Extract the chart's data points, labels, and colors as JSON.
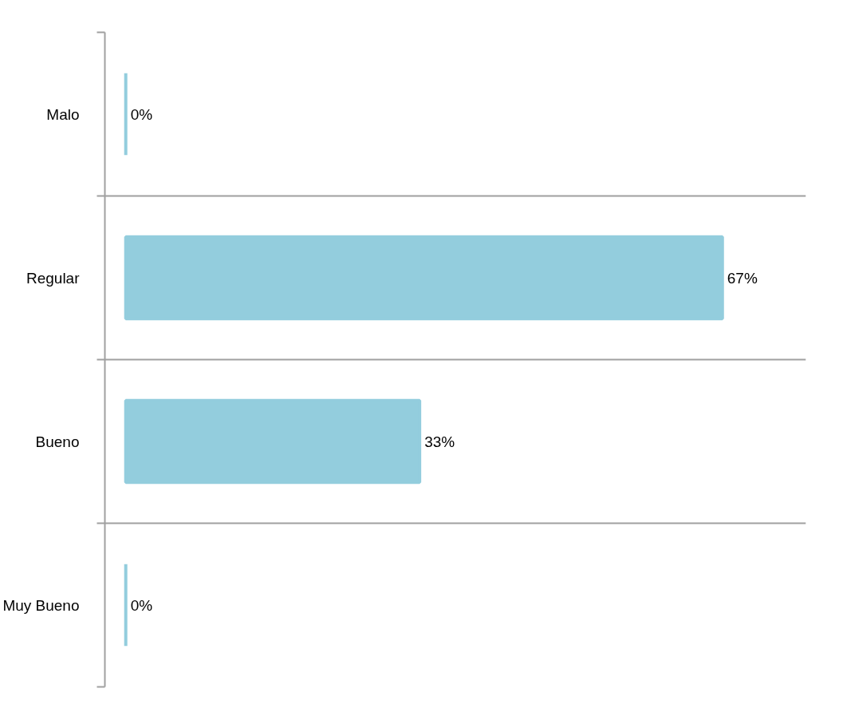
{
  "chart_data": {
    "type": "bar",
    "orientation": "horizontal",
    "categories": [
      "Malo",
      "Regular",
      "Bueno",
      "Muy Bueno"
    ],
    "values": [
      0,
      67,
      33,
      0
    ],
    "value_labels": [
      "0%",
      "67%",
      "33%",
      "0%"
    ],
    "color": "#93cddd",
    "grid": "y"
  }
}
